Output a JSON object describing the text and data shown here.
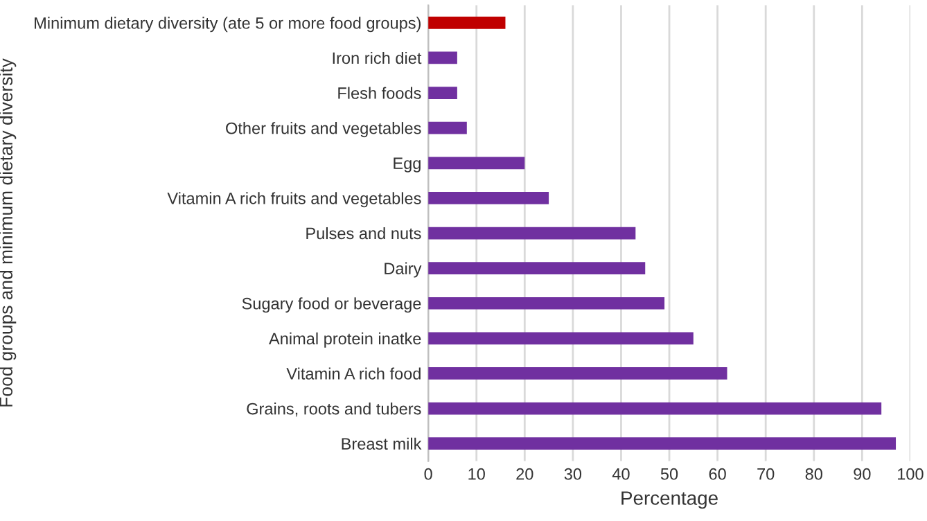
{
  "chart_data": {
    "type": "bar",
    "orientation": "horizontal",
    "categories": [
      "Minimum dietary diversity (ate 5 or more food groups)",
      "Iron rich diet",
      "Flesh foods",
      "Other fruits and vegetables",
      "Egg",
      "Vitamin A rich fruits and vegetables",
      "Pulses and nuts",
      "Dairy",
      "Sugary food or beverage",
      "Animal protein inatke",
      "Vitamin A rich food",
      "Grains, roots and tubers",
      "Breast milk"
    ],
    "values": [
      16,
      6,
      6,
      8,
      20,
      25,
      43,
      45,
      49,
      55,
      62,
      94,
      97
    ],
    "colors": [
      "#c00000",
      "#7030a0",
      "#7030a0",
      "#7030a0",
      "#7030a0",
      "#7030a0",
      "#7030a0",
      "#7030a0",
      "#7030a0",
      "#7030a0",
      "#7030a0",
      "#7030a0",
      "#7030a0"
    ],
    "xlabel": "Percentage",
    "ylabel": "Food groups and minimum dietary diversity",
    "xlim": [
      0,
      100
    ],
    "xticks": [
      0,
      10,
      20,
      30,
      40,
      50,
      60,
      70,
      80,
      90,
      100
    ],
    "grid": "x"
  }
}
